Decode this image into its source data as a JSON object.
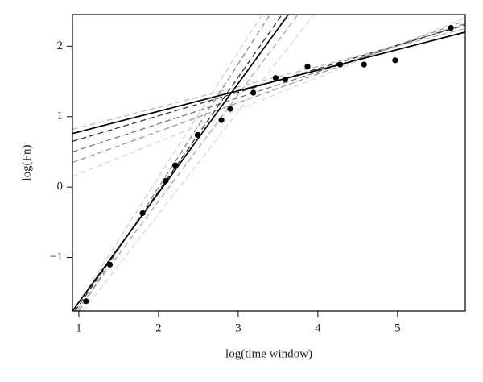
{
  "chart_data": {
    "type": "scatter",
    "xlabel": "log(time window)",
    "ylabel": "log(Fn)",
    "xlim": [
      0.92,
      5.85
    ],
    "ylim": [
      -1.76,
      2.45
    ],
    "xticks": [
      1,
      2,
      3,
      4,
      5
    ],
    "yticks": [
      {
        "value": -1,
        "label": "−1"
      },
      0,
      1,
      2
    ],
    "series": [
      {
        "kind": "line",
        "dash": true,
        "color": "#d8d8d8",
        "x": [
          0.92,
          5.85
        ],
        "values": [
          0.15,
          2.4
        ]
      },
      {
        "kind": "line",
        "dash": true,
        "color": "#999999",
        "x": [
          0.92,
          5.85
        ],
        "values": [
          0.35,
          2.36
        ]
      },
      {
        "kind": "line",
        "dash": true,
        "color": "#777777",
        "x": [
          0.92,
          5.85
        ],
        "values": [
          0.5,
          2.32
        ]
      },
      {
        "kind": "line",
        "dash": true,
        "color": "#333333",
        "x": [
          0.92,
          5.85
        ],
        "values": [
          0.65,
          2.3
        ]
      },
      {
        "kind": "line",
        "dash": true,
        "color": "#bbbbbb",
        "x": [
          0.92,
          5.85
        ],
        "values": [
          0.82,
          2.25
        ]
      },
      {
        "kind": "line",
        "dash": true,
        "color": "#d8d8d8",
        "x": [
          1.05,
          3.95
        ],
        "values": [
          -1.76,
          2.45
        ]
      },
      {
        "kind": "line",
        "dash": true,
        "color": "#aaaaaa",
        "x": [
          0.97,
          3.75
        ],
        "values": [
          -1.76,
          2.45
        ]
      },
      {
        "kind": "line",
        "dash": true,
        "color": "#888888",
        "x": [
          1.0,
          3.4
        ],
        "values": [
          -1.76,
          2.45
        ]
      },
      {
        "kind": "line",
        "dash": true,
        "color": "#d0d0d0",
        "x": [
          0.93,
          3.3
        ],
        "values": [
          -1.76,
          2.45
        ]
      },
      {
        "kind": "line",
        "dash": true,
        "color": "#333333",
        "x": [
          0.95,
          3.55
        ],
        "values": [
          -1.76,
          2.45
        ]
      },
      {
        "kind": "line",
        "dash": false,
        "color": "#000000",
        "x": [
          0.92,
          5.85
        ],
        "values": [
          0.76,
          2.2
        ]
      },
      {
        "kind": "line",
        "dash": false,
        "color": "#000000",
        "x": [
          0.92,
          3.63
        ],
        "values": [
          -1.76,
          2.45
        ]
      },
      {
        "kind": "points",
        "color": "#000000",
        "x": [
          1.09,
          1.39,
          1.8,
          2.09,
          2.21,
          2.49,
          2.79,
          2.9,
          3.19,
          3.47,
          3.59,
          3.87,
          4.28,
          4.58,
          4.97,
          5.67
        ],
        "values": [
          -1.62,
          -1.1,
          -0.37,
          0.09,
          0.31,
          0.74,
          0.95,
          1.11,
          1.34,
          1.55,
          1.53,
          1.71,
          1.74,
          1.74,
          1.8,
          2.26
        ]
      }
    ]
  }
}
